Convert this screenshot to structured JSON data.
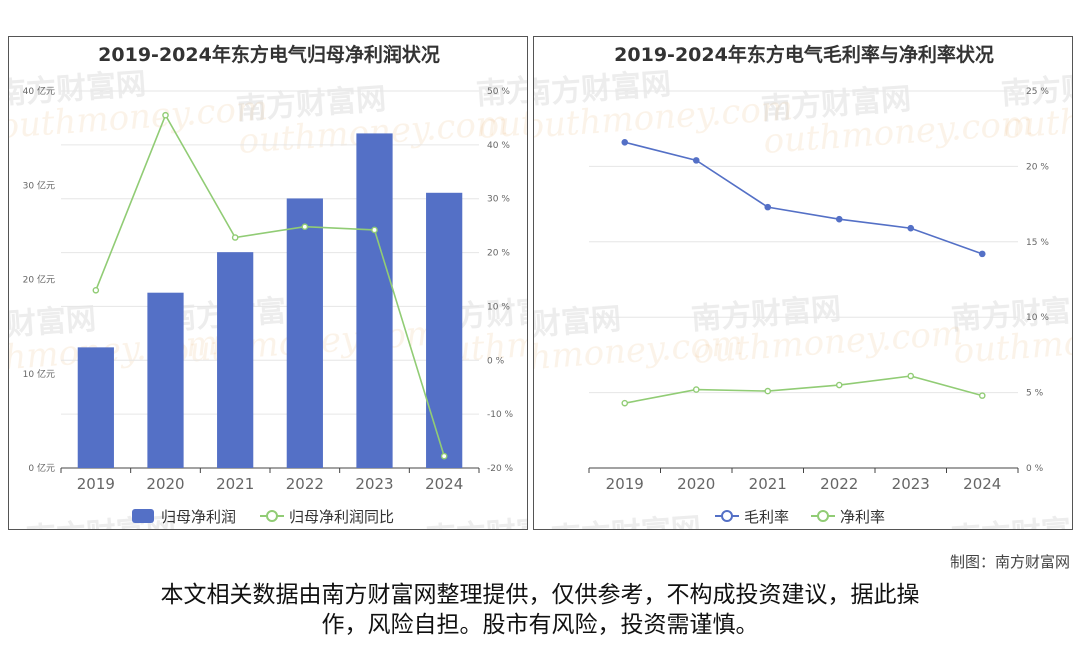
{
  "chart_data": [
    {
      "type": "bar+line",
      "title": "2019-2024年东方电气归母净利润状况",
      "categories": [
        "2019",
        "2020",
        "2021",
        "2022",
        "2023",
        "2024"
      ],
      "series": [
        {
          "name": "归母净利润",
          "type": "bar",
          "axis": "left",
          "color": "#5470c6",
          "values": [
            12.8,
            18.6,
            22.9,
            28.6,
            35.5,
            29.2
          ]
        },
        {
          "name": "归母净利润同比",
          "type": "line",
          "axis": "right",
          "color": "#91cc75",
          "values": [
            13.0,
            45.5,
            22.8,
            24.8,
            24.2,
            -17.8
          ]
        }
      ],
      "y_left": {
        "min": 0,
        "max": 40,
        "ticks": [
          "0 亿元",
          "10 亿元",
          "20 亿元",
          "30 亿元",
          "40 亿元"
        ]
      },
      "y_right": {
        "min": -20,
        "max": 50,
        "ticks": [
          "-20 %",
          "-10 %",
          "0 %",
          "10 %",
          "20 %",
          "30 %",
          "40 %",
          "50 %"
        ]
      },
      "legend": "bottom"
    },
    {
      "type": "line",
      "title": "2019-2024年东方电气毛利率与净利率状况",
      "categories": [
        "2019",
        "2020",
        "2021",
        "2022",
        "2023",
        "2024"
      ],
      "series": [
        {
          "name": "毛利率",
          "type": "line",
          "axis": "right",
          "color": "#5470c6",
          "values": [
            21.6,
            20.4,
            17.3,
            16.5,
            15.9,
            14.2
          ]
        },
        {
          "name": "净利率",
          "type": "line",
          "axis": "right",
          "color": "#91cc75",
          "values": [
            4.3,
            5.2,
            5.1,
            5.5,
            6.1,
            4.8
          ]
        }
      ],
      "y_right": {
        "min": 0,
        "max": 25,
        "ticks": [
          "0 %",
          "5 %",
          "10 %",
          "15 %",
          "20 %",
          "25 %"
        ]
      },
      "legend": "bottom"
    }
  ],
  "watermark": {
    "cn": "南方财富网",
    "en": "outhmoney.com"
  },
  "footer": {
    "credit": "制图：南方财富网",
    "disclaimer_line1": "本文相关数据由南方财富网整理提供，仅供参考，不构成投资建议，据此操",
    "disclaimer_line2": "作，风险自担。股市有风险，投资需谨慎。"
  }
}
